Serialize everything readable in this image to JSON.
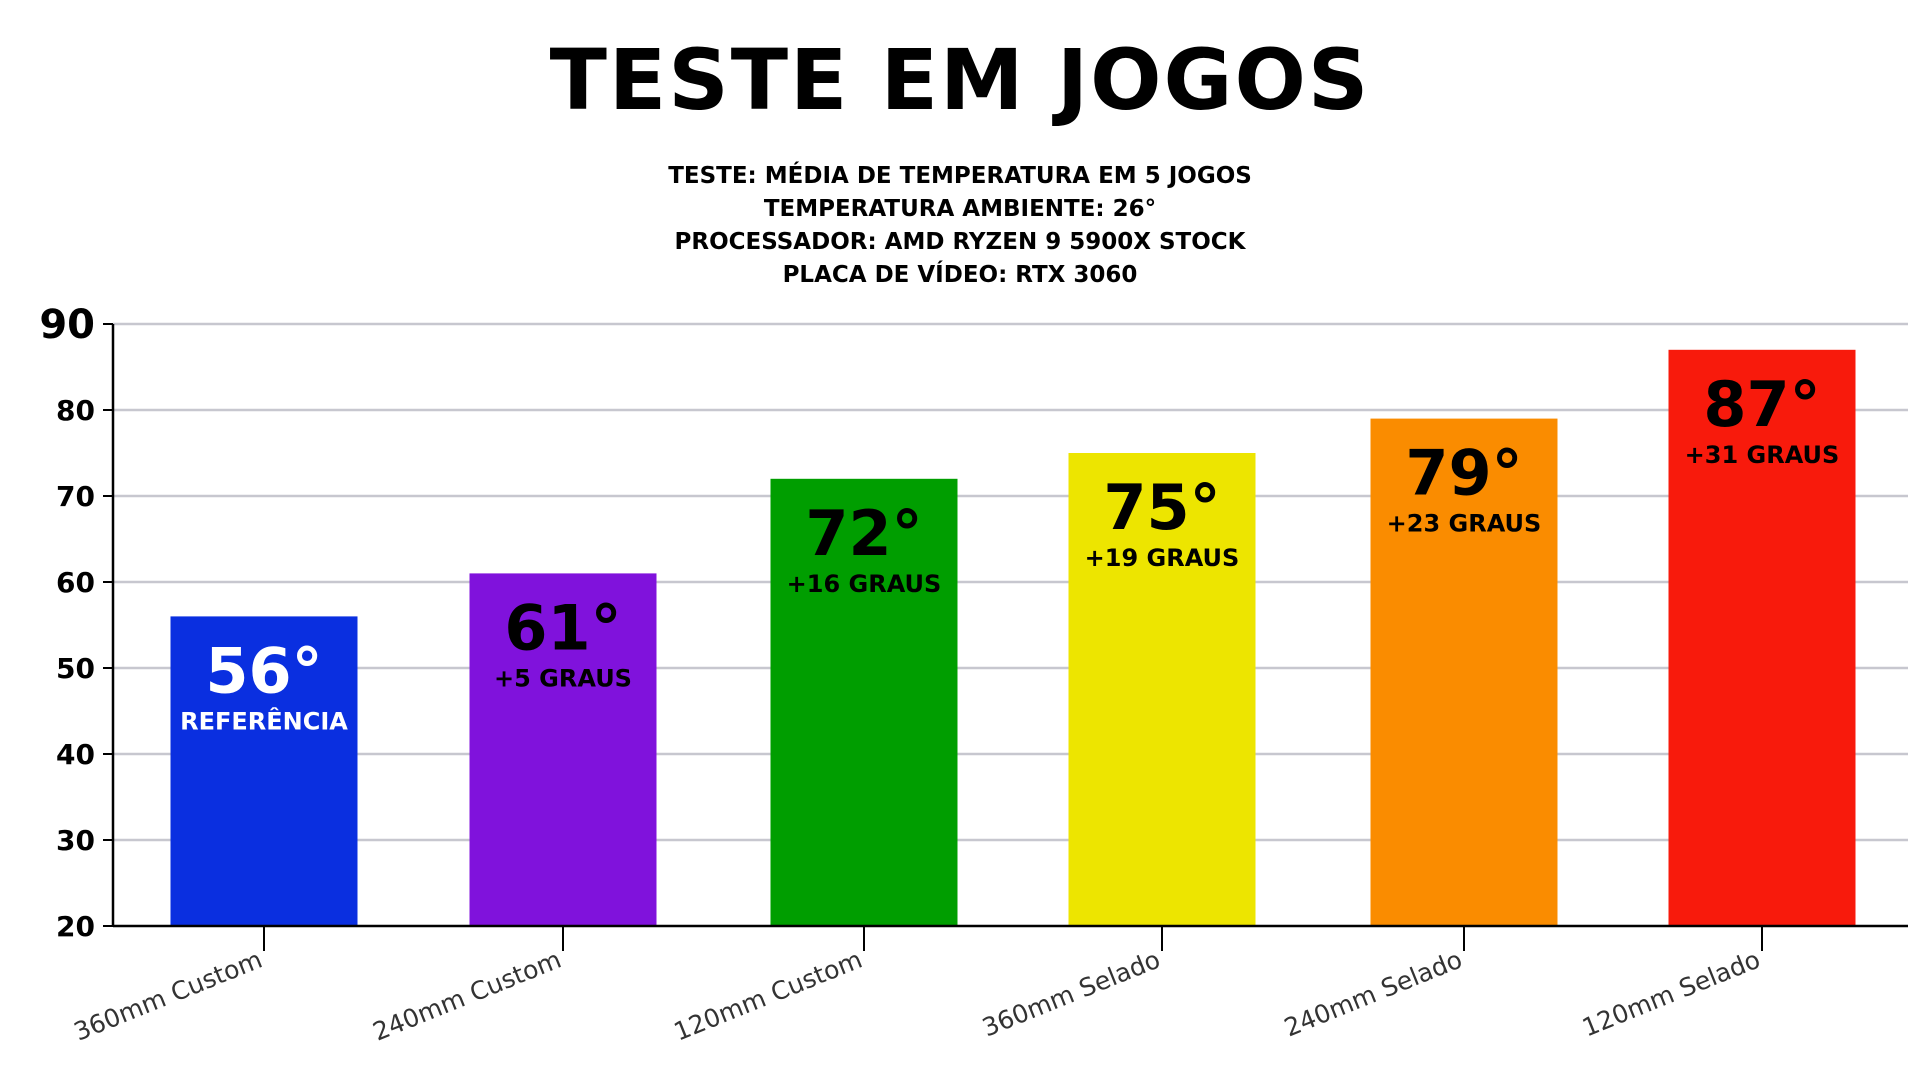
{
  "chart_data": {
    "type": "bar",
    "title": "TESTE EM JOGOS",
    "subtitle": [
      "TESTE: MÉDIA DE TEMPERATURA EM 5 JOGOS",
      "TEMPERATURA AMBIENTE: 26°",
      "PROCESSADOR: AMD RYZEN 9 5900X STOCK",
      "PLACA DE VÍDEO: RTX 3060"
    ],
    "categories": [
      "360mm Custom",
      "240mm Custom",
      "120mm Custom",
      "360mm Selado",
      "240mm Selado",
      "120mm Selado"
    ],
    "values": [
      56,
      61,
      72,
      75,
      79,
      87
    ],
    "value_labels": [
      "56°",
      "61°",
      "72°",
      "75°",
      "79°",
      "87°"
    ],
    "diff_labels": [
      "REFERÊNCIA",
      "+5 GRAUS",
      "+16 GRAUS",
      "+19 GRAUS",
      "+23 GRAUS",
      "+31 GRAUS"
    ],
    "colors": [
      "#0a2fe0",
      "#8012dc",
      "#009e00",
      "#ede500",
      "#fa8c00",
      "#f81a0c"
    ],
    "label_colors": [
      "#ffffff",
      "#000000",
      "#000000",
      "#000000",
      "#000000",
      "#000000"
    ],
    "ylim": [
      20,
      90
    ],
    "yticks": [
      20,
      30,
      40,
      50,
      60,
      70,
      80,
      90
    ],
    "grid": true,
    "grid_color": "#c7c7cf",
    "xlabel": "",
    "ylabel": ""
  }
}
